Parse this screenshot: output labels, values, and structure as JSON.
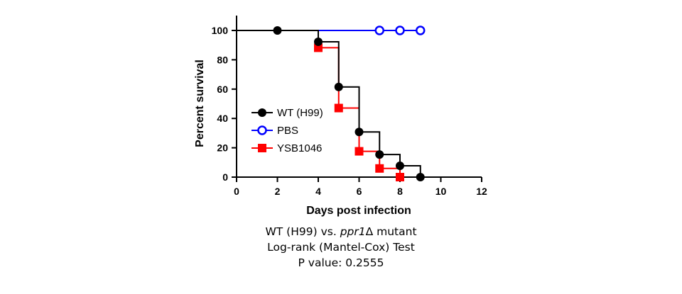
{
  "chart_data": {
    "type": "line",
    "step": true,
    "xlabel": "Days post infection",
    "ylabel": "Percent survival",
    "xlim": [
      0,
      12
    ],
    "ylim": [
      0,
      100
    ],
    "xticks": [
      0,
      2,
      4,
      6,
      8,
      10,
      12
    ],
    "yticks": [
      0,
      20,
      40,
      60,
      80,
      100
    ],
    "grid": false,
    "legend_position": "left",
    "series": [
      {
        "name": "WT (H99)",
        "color": "#000000",
        "marker": "circle-filled",
        "points": [
          {
            "x": 0,
            "y": 100
          },
          {
            "x": 2,
            "y": 100
          },
          {
            "x": 4,
            "y": 92.3
          },
          {
            "x": 5,
            "y": 61.5
          },
          {
            "x": 6,
            "y": 30.8
          },
          {
            "x": 7,
            "y": 15.4
          },
          {
            "x": 8,
            "y": 7.7
          },
          {
            "x": 9,
            "y": 0
          }
        ],
        "markers_at": [
          2,
          4,
          5,
          6,
          7,
          8,
          9
        ]
      },
      {
        "name": "PBS",
        "color": "#0000ff",
        "marker": "circle-open",
        "points": [
          {
            "x": 0,
            "y": 100
          },
          {
            "x": 7,
            "y": 100
          },
          {
            "x": 8,
            "y": 100
          },
          {
            "x": 9,
            "y": 100
          }
        ],
        "markers_at": [
          7,
          8,
          9
        ]
      },
      {
        "name": "YSB1046",
        "color": "#ff0000",
        "marker": "square-filled",
        "points": [
          {
            "x": 0,
            "y": 100
          },
          {
            "x": 4,
            "y": 88.2
          },
          {
            "x": 5,
            "y": 47.1
          },
          {
            "x": 6,
            "y": 17.6
          },
          {
            "x": 7,
            "y": 5.9
          },
          {
            "x": 8,
            "y": 0
          }
        ],
        "markers_at": [
          4,
          5,
          6,
          7,
          8
        ]
      }
    ]
  },
  "caption": {
    "line1_prefix": "WT (H99) vs. ",
    "line1_italic": "ppr1",
    "line1_suffix": "Δ mutant",
    "line2": "Log-rank (Mantel-Cox) Test",
    "line3": "P value: 0.2555"
  }
}
